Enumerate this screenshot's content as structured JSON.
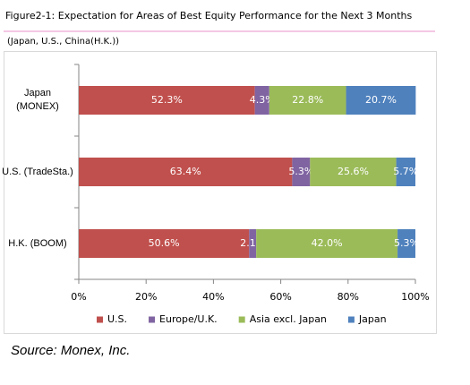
{
  "chart_data": {
    "type": "stacked_barh",
    "title": "Figure2-1: Expectation for Areas of Best Equity Performance for the Next 3 Months",
    "subtitle": "(Japan, U.S., China(H.K.))",
    "source": "Source: Monex, Inc.",
    "categories": [
      "Japan (MONEX)",
      "U.S. (TradeSta.)",
      "H.K. (BOOM)"
    ],
    "series": [
      {
        "name": "U.S.",
        "color": "#c0504d",
        "values": [
          52.3,
          63.4,
          50.6
        ],
        "value_labels": [
          "52.3%",
          "63.4%",
          "50.6%"
        ]
      },
      {
        "name": "Europe/U.K.",
        "color": "#8064a2",
        "values": [
          4.3,
          5.3,
          2.1
        ],
        "value_labels": [
          "4.3%",
          "5.3%",
          "2.1%"
        ]
      },
      {
        "name": "Asia excl. Japan",
        "color": "#9bbb59",
        "values": [
          22.8,
          25.6,
          42.0
        ],
        "value_labels": [
          "22.8%",
          "25.6%",
          "42.0%"
        ]
      },
      {
        "name": "Japan",
        "color": "#4f81bd",
        "values": [
          20.7,
          5.7,
          5.3
        ],
        "value_labels": [
          "20.7%",
          "5.7%",
          "5.3%"
        ]
      }
    ],
    "xlim": [
      0,
      100
    ],
    "xticks": [
      {
        "value": 0,
        "label": "0%"
      },
      {
        "value": 20,
        "label": "20%"
      },
      {
        "value": 40,
        "label": "40%"
      },
      {
        "value": 60,
        "label": "60%"
      },
      {
        "value": 80,
        "label": "80%"
      },
      {
        "value": 100,
        "label": "100%"
      }
    ],
    "legend": "bottom"
  }
}
